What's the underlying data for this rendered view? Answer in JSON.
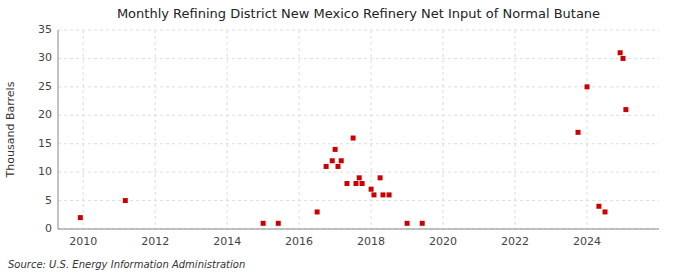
{
  "chart_data": {
    "type": "scatter",
    "title": "Monthly Refining District New Mexico Refinery Net Input of Normal Butane",
    "y_label": "Thousand Barrels",
    "annotation": "Source: U.S. Energy Information Administration",
    "color": "#cc0000",
    "marker": "square",
    "grid": true,
    "xlim": [
      2009.3,
      2026.0
    ],
    "ylim": [
      0,
      35
    ],
    "xticks": [
      2010,
      2012,
      2014,
      2016,
      2018,
      2020,
      2022,
      2024
    ],
    "yticks": [
      0,
      5,
      10,
      15,
      20,
      25,
      30,
      35
    ],
    "x": [
      2009.92,
      2011.17,
      2015.0,
      2015.42,
      2016.5,
      2016.75,
      2016.92,
      2017.0,
      2017.08,
      2017.17,
      2017.33,
      2017.5,
      2017.58,
      2017.67,
      2017.75,
      2018.0,
      2018.08,
      2018.25,
      2018.33,
      2018.5,
      2019.0,
      2019.42,
      2023.75,
      2024.0,
      2024.33,
      2024.5,
      2024.92,
      2025.0,
      2025.08
    ],
    "values": [
      2,
      5,
      1,
      1,
      3,
      11,
      12,
      14,
      11,
      12,
      8,
      16,
      8,
      9,
      8,
      7,
      6,
      9,
      6,
      6,
      1,
      1,
      17,
      25,
      4,
      3,
      31,
      30,
      21
    ]
  }
}
